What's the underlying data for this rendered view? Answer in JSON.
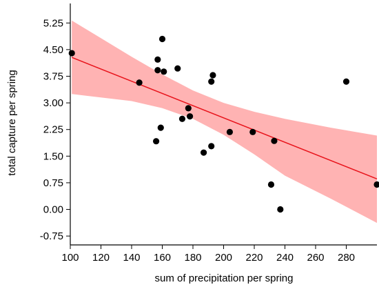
{
  "chart_data": {
    "type": "scatter",
    "title": "",
    "xlabel": "sum of precipitation per spring",
    "ylabel": "total capture per spring",
    "xlim": [
      100,
      300
    ],
    "ylim": [
      -1.0,
      5.8
    ],
    "xticks": [
      100,
      120,
      140,
      160,
      180,
      200,
      220,
      240,
      260,
      280
    ],
    "xtick_labels": [
      "100",
      "120",
      "140",
      "160",
      "180",
      "200",
      "220",
      "240",
      "260",
      "280"
    ],
    "yticks": [
      5.25,
      4.5,
      3.75,
      3.0,
      2.25,
      1.5,
      0.75,
      0.0,
      -0.75
    ],
    "ytick_labels": [
      "5.25",
      "4.50",
      "3.75",
      "3.00",
      "2.25",
      "1.50",
      "0.75",
      "0.00",
      "-0.75"
    ],
    "grid": false,
    "legend": "none",
    "colors": {
      "points": "#000000",
      "regression_line": "#e8131b",
      "confidence_band": "#ffb3b3",
      "axis": "#000000"
    },
    "series": [
      {
        "type": "scatter",
        "points": [
          {
            "x": 101,
            "y": 4.4
          },
          {
            "x": 145,
            "y": 3.57
          },
          {
            "x": 156,
            "y": 1.92
          },
          {
            "x": 157,
            "y": 4.22
          },
          {
            "x": 157,
            "y": 3.92
          },
          {
            "x": 159,
            "y": 2.3
          },
          {
            "x": 160,
            "y": 4.8
          },
          {
            "x": 161,
            "y": 3.88
          },
          {
            "x": 170,
            "y": 3.97
          },
          {
            "x": 173,
            "y": 2.55
          },
          {
            "x": 177,
            "y": 2.85
          },
          {
            "x": 178,
            "y": 2.62
          },
          {
            "x": 187,
            "y": 1.6
          },
          {
            "x": 192,
            "y": 1.78
          },
          {
            "x": 192,
            "y": 3.6
          },
          {
            "x": 193,
            "y": 3.78
          },
          {
            "x": 204,
            "y": 2.18
          },
          {
            "x": 219,
            "y": 2.18
          },
          {
            "x": 231,
            "y": 0.7
          },
          {
            "x": 233,
            "y": 1.93
          },
          {
            "x": 237,
            "y": 0.0
          },
          {
            "x": 280,
            "y": 3.6
          },
          {
            "x": 300,
            "y": 0.7
          }
        ]
      },
      {
        "type": "line",
        "points": [
          {
            "x": 101,
            "y": 4.28
          },
          {
            "x": 300,
            "y": 0.86
          }
        ]
      },
      {
        "type": "band",
        "upper": [
          {
            "x": 101,
            "y": 5.32
          },
          {
            "x": 140,
            "y": 4.3
          },
          {
            "x": 160,
            "y": 3.8
          },
          {
            "x": 180,
            "y": 3.35
          },
          {
            "x": 200,
            "y": 3.0
          },
          {
            "x": 220,
            "y": 2.75
          },
          {
            "x": 240,
            "y": 2.55
          },
          {
            "x": 270,
            "y": 2.3
          },
          {
            "x": 300,
            "y": 2.08
          }
        ],
        "lower": [
          {
            "x": 101,
            "y": 3.25
          },
          {
            "x": 140,
            "y": 3.05
          },
          {
            "x": 160,
            "y": 2.85
          },
          {
            "x": 180,
            "y": 2.55
          },
          {
            "x": 200,
            "y": 2.1
          },
          {
            "x": 220,
            "y": 1.55
          },
          {
            "x": 240,
            "y": 0.95
          },
          {
            "x": 270,
            "y": 0.3
          },
          {
            "x": 300,
            "y": -0.38
          }
        ]
      }
    ]
  }
}
